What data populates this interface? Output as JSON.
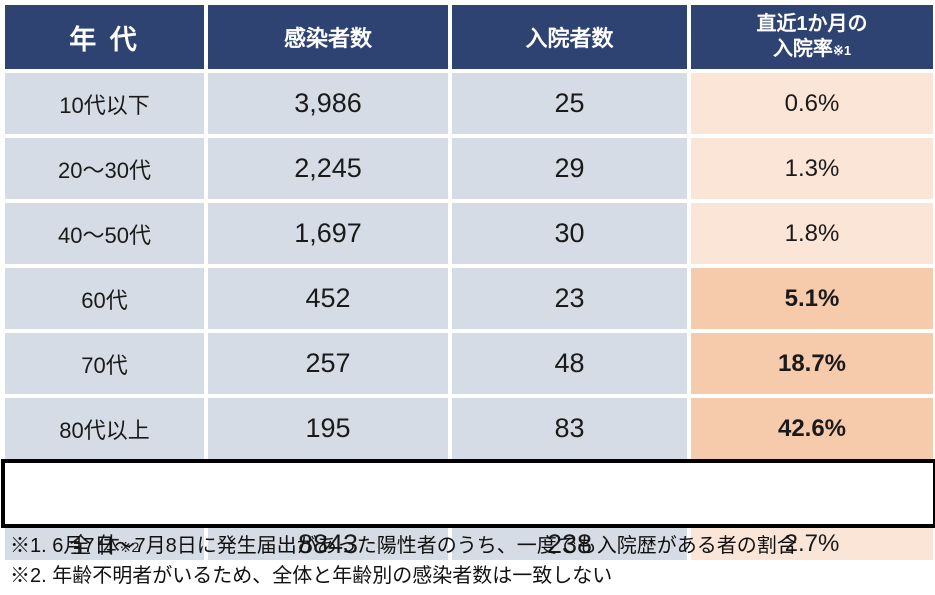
{
  "colors": {
    "header_bg": "#2E4372",
    "header_text": "#FFFFFF",
    "cell_bg": "#D6DCE5",
    "rate_low_bg": "#FBE5D6",
    "rate_high_bg": "#F6CBAB",
    "total_border": "#000000",
    "body_text": "#1A1A1A"
  },
  "chart_data": {
    "type": "table",
    "columns": [
      "年代",
      "感染者数",
      "入院者数",
      "直近1か月の入院率※1"
    ],
    "rows": [
      [
        "10代以下",
        3986,
        25,
        0.6
      ],
      [
        "20～30代",
        2245,
        29,
        1.3
      ],
      [
        "40～50代",
        1697,
        30,
        1.8
      ],
      [
        "60代",
        452,
        23,
        5.1
      ],
      [
        "70代",
        257,
        48,
        18.7
      ],
      [
        "80代以上",
        195,
        83,
        42.6
      ],
      [
        "全体※2",
        8843,
        238,
        2.7
      ]
    ],
    "rate_unit": "%",
    "highlighted_rate_rows": [
      "60代",
      "70代",
      "80代以上"
    ],
    "footnotes": [
      "※1. 6月7日～7月8日に発生届出があった陽性者のうち、一度でも入院歴がある者の割合",
      "※2. 年齢不明者がいるため、全体と年齢別の感染者数は一致しない"
    ]
  },
  "table": {
    "headers": {
      "age": "年 代",
      "infected": "感染者数",
      "hospitalized": "入院者数",
      "rate_line1": "直近1か月の",
      "rate_line2": "入院率",
      "rate_note": "※1"
    },
    "rows": [
      {
        "age": "10代以下",
        "infected": "3,986",
        "hospitalized": "25",
        "rate": "0.6%"
      },
      {
        "age": "20～30代",
        "infected": "2,245",
        "hospitalized": "29",
        "rate": "1.3%"
      },
      {
        "age": "40～50代",
        "infected": "1,697",
        "hospitalized": "30",
        "rate": "1.8%"
      },
      {
        "age": "60代",
        "infected": "452",
        "hospitalized": "23",
        "rate": "5.1%"
      },
      {
        "age": "70代",
        "infected": "257",
        "hospitalized": "48",
        "rate": "18.7%"
      },
      {
        "age": "80代以上",
        "infected": "195",
        "hospitalized": "83",
        "rate": "42.6%"
      }
    ],
    "total": {
      "age": "全 体",
      "age_note": "※2",
      "infected": "8843",
      "hospitalized": "238",
      "rate": "2.7%"
    }
  },
  "footnotes": [
    "※1. 6月7日～7月8日に発生届出があった陽性者のうち、一度でも入院歴がある者の割合",
    "※2. 年齢不明者がいるため、全体と年齢別の感染者数は一致しない"
  ]
}
